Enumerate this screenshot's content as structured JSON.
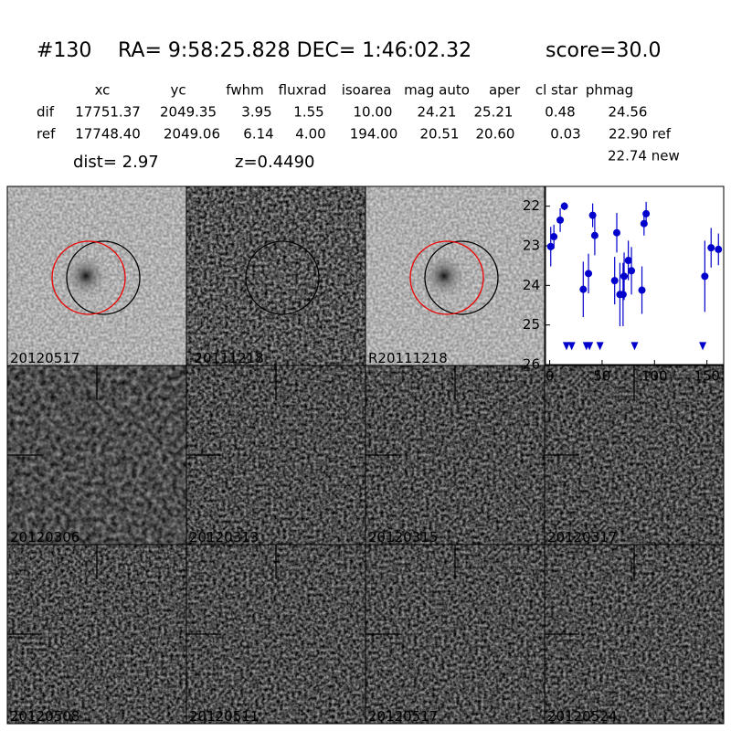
{
  "header": {
    "id": "#130",
    "coords": "RA= 9:58:25.828 DEC= 1:46:02.32",
    "score": "score=30.0"
  },
  "table": {
    "columns": [
      "xc",
      "yc",
      "fwhm",
      "fluxrad",
      "isoarea",
      "mag auto",
      "aper",
      "cl star",
      "phmag"
    ],
    "rows": [
      {
        "label": "dif",
        "cells": [
          "17751.37",
          "2049.35",
          "3.95",
          "1.55",
          "10.00",
          "24.21",
          "25.21",
          "0.48",
          "24.56"
        ]
      },
      {
        "label": "ref",
        "cells": [
          "17748.40",
          "2049.06",
          "6.14",
          "4.00",
          "194.00",
          "20.51",
          "20.60",
          "0.03",
          "22.90 ref"
        ]
      }
    ],
    "extra": "22.74 new"
  },
  "dist": "dist=  2.97",
  "z": "z=0.4490",
  "panels": [
    {
      "label": "20120517",
      "label_color": "#000000"
    },
    {
      "label": "-20111218",
      "label_color": "#000000"
    },
    {
      "label": "R20111218",
      "label_color": "#000000"
    },
    {
      "label": "20120306",
      "label_color": "#000000"
    },
    {
      "label": "20120313",
      "label_color": "#000000"
    },
    {
      "label": "20120315",
      "label_color": "#000000"
    },
    {
      "label": "20120317",
      "label_color": "#000000"
    },
    {
      "label": "20120508",
      "label_color": "#000000"
    },
    {
      "label": "20120511",
      "label_color": "#000000"
    },
    {
      "label": "20120517",
      "label_color": "#ff0000"
    },
    {
      "label": "20120524",
      "label_color": "#000000"
    }
  ],
  "chart_data": {
    "type": "errorbar",
    "color": "#0000cc",
    "xlim": [
      -4,
      166
    ],
    "xticks": [
      0,
      50,
      100,
      150
    ],
    "ylim": [
      26,
      21.5
    ],
    "yticks": [
      22,
      23,
      24,
      25,
      26
    ],
    "series": [
      {
        "x": [
          1,
          4,
          10,
          14,
          32,
          37,
          41,
          43,
          62,
          64,
          67,
          70,
          71,
          75,
          78,
          88,
          90,
          92,
          148,
          154,
          161
        ],
        "values": [
          23.02,
          22.77,
          22.35,
          22.0,
          24.1,
          23.7,
          22.23,
          22.74,
          23.88,
          22.67,
          24.23,
          24.23,
          23.77,
          23.37,
          23.63,
          24.12,
          22.44,
          22.19,
          23.77,
          23.05,
          23.09
        ],
        "errors": [
          0.5,
          0.3,
          0.3,
          0.1,
          0.7,
          0.5,
          0.3,
          0.5,
          0.6,
          0.5,
          0.8,
          0.8,
          0.6,
          0.5,
          0.6,
          0.6,
          0.3,
          0.3,
          0.9,
          0.5,
          0.4
        ]
      },
      {
        "x": [
          16,
          21,
          35,
          38,
          48,
          81,
          146
        ],
        "values": [
          25.5,
          25.5,
          25.5,
          25.5,
          25.5,
          25.5,
          25.5
        ]
      }
    ]
  }
}
